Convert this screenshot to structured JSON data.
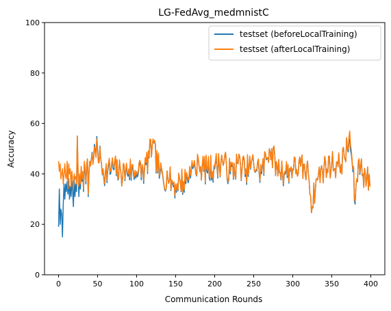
{
  "chart_data": {
    "type": "line",
    "title": "LG-FedAvg_medmnistC",
    "xlabel": "Communication Rounds",
    "ylabel": "Accuracy",
    "xlim": [
      -18,
      418
    ],
    "ylim": [
      0,
      100
    ],
    "xticks": [
      0,
      50,
      100,
      150,
      200,
      250,
      300,
      350,
      400
    ],
    "yticks": [
      0,
      20,
      40,
      60,
      80,
      100
    ],
    "grid": false,
    "legend_position": "top-right",
    "series": [
      {
        "name": "testset (beforeLocalTraining)",
        "color": "#1f77b4",
        "anchors": [
          [
            0,
            19
          ],
          [
            1,
            34
          ],
          [
            2,
            20
          ],
          [
            3,
            26
          ],
          [
            4,
            24
          ],
          [
            5,
            15
          ],
          [
            6,
            28
          ],
          [
            7,
            36
          ],
          [
            8,
            30
          ],
          [
            9,
            36
          ],
          [
            10,
            33
          ],
          [
            11,
            37
          ],
          [
            12,
            32
          ],
          [
            13,
            38
          ],
          [
            14,
            30
          ],
          [
            15,
            35
          ],
          [
            16,
            31
          ],
          [
            17,
            37
          ],
          [
            18,
            33
          ],
          [
            19,
            27
          ],
          [
            20,
            38
          ],
          [
            21,
            31
          ],
          [
            22,
            36
          ],
          [
            23,
            33
          ],
          [
            24,
            55
          ],
          [
            25,
            40
          ],
          [
            26,
            31
          ],
          [
            27,
            38
          ],
          [
            28,
            34
          ],
          [
            29,
            42
          ],
          [
            30,
            37
          ],
          [
            31,
            40
          ],
          [
            32,
            33
          ],
          [
            33,
            44
          ],
          [
            34,
            41
          ],
          [
            35,
            36
          ],
          [
            36,
            43
          ],
          [
            37,
            46
          ],
          [
            38,
            31
          ],
          [
            39,
            40
          ],
          [
            40,
            45
          ],
          [
            45,
            47
          ],
          [
            50,
            50
          ],
          [
            55,
            44
          ],
          [
            60,
            40
          ],
          [
            70,
            42
          ],
          [
            80,
            40
          ],
          [
            90,
            41
          ],
          [
            100,
            40
          ],
          [
            110,
            41
          ],
          [
            120,
            51
          ],
          [
            130,
            40
          ],
          [
            140,
            38
          ],
          [
            150,
            35
          ],
          [
            155,
            38
          ],
          [
            160,
            36
          ],
          [
            170,
            41
          ],
          [
            180,
            43
          ],
          [
            190,
            41
          ],
          [
            200,
            42
          ],
          [
            210,
            45
          ],
          [
            220,
            40
          ],
          [
            230,
            44
          ],
          [
            240,
            41
          ],
          [
            250,
            44
          ],
          [
            260,
            40
          ],
          [
            270,
            50
          ],
          [
            280,
            43
          ],
          [
            290,
            40
          ],
          [
            300,
            42
          ],
          [
            310,
            43
          ],
          [
            320,
            40
          ],
          [
            325,
            27
          ],
          [
            330,
            38
          ],
          [
            340,
            42
          ],
          [
            350,
            44
          ],
          [
            360,
            43
          ],
          [
            370,
            50
          ],
          [
            373,
            54
          ],
          [
            376,
            45
          ],
          [
            380,
            28
          ],
          [
            382,
            38
          ],
          [
            385,
            45
          ],
          [
            390,
            40
          ],
          [
            395,
            39
          ],
          [
            399,
            35
          ]
        ],
        "amplitude": 5.5,
        "seed": 7
      },
      {
        "name": "testset (afterLocalTraining)",
        "color": "#ff7f0e",
        "anchors": [
          [
            0,
            45
          ],
          [
            1,
            41
          ],
          [
            2,
            44
          ],
          [
            3,
            38
          ],
          [
            4,
            40
          ],
          [
            5,
            42
          ],
          [
            6,
            36
          ],
          [
            7,
            40
          ],
          [
            8,
            44
          ],
          [
            9,
            39
          ],
          [
            10,
            38
          ],
          [
            11,
            45
          ],
          [
            12,
            34
          ],
          [
            13,
            44
          ],
          [
            14,
            40
          ],
          [
            15,
            42
          ],
          [
            16,
            35
          ],
          [
            17,
            41
          ],
          [
            18,
            38
          ],
          [
            19,
            34
          ],
          [
            20,
            40
          ],
          [
            21,
            38
          ],
          [
            22,
            39
          ],
          [
            23,
            36
          ],
          [
            24,
            55
          ],
          [
            25,
            42
          ],
          [
            26,
            35
          ],
          [
            27,
            40
          ],
          [
            28,
            36
          ],
          [
            29,
            43
          ],
          [
            30,
            38
          ],
          [
            31,
            41
          ],
          [
            32,
            34
          ],
          [
            33,
            45
          ],
          [
            34,
            42
          ],
          [
            35,
            37
          ],
          [
            36,
            44
          ],
          [
            37,
            46
          ],
          [
            38,
            32
          ],
          [
            39,
            41
          ],
          [
            40,
            45
          ],
          [
            45,
            46
          ],
          [
            50,
            49
          ],
          [
            55,
            44
          ],
          [
            60,
            41
          ],
          [
            70,
            43
          ],
          [
            80,
            40
          ],
          [
            90,
            42
          ],
          [
            100,
            41
          ],
          [
            110,
            42
          ],
          [
            120,
            51
          ],
          [
            130,
            41
          ],
          [
            140,
            38
          ],
          [
            150,
            36
          ],
          [
            155,
            38
          ],
          [
            160,
            37
          ],
          [
            170,
            42
          ],
          [
            180,
            43
          ],
          [
            190,
            42
          ],
          [
            200,
            43
          ],
          [
            210,
            45
          ],
          [
            220,
            41
          ],
          [
            230,
            44
          ],
          [
            240,
            42
          ],
          [
            250,
            44
          ],
          [
            260,
            41
          ],
          [
            270,
            50
          ],
          [
            280,
            43
          ],
          [
            290,
            41
          ],
          [
            300,
            42
          ],
          [
            310,
            43
          ],
          [
            320,
            40
          ],
          [
            325,
            27
          ],
          [
            330,
            38
          ],
          [
            340,
            42
          ],
          [
            350,
            44
          ],
          [
            360,
            43
          ],
          [
            370,
            50
          ],
          [
            373,
            57
          ],
          [
            376,
            46
          ],
          [
            380,
            29
          ],
          [
            382,
            38
          ],
          [
            385,
            46
          ],
          [
            390,
            40
          ],
          [
            395,
            39
          ],
          [
            399,
            35
          ]
        ],
        "amplitude": 5.5,
        "seed": 7
      }
    ]
  }
}
